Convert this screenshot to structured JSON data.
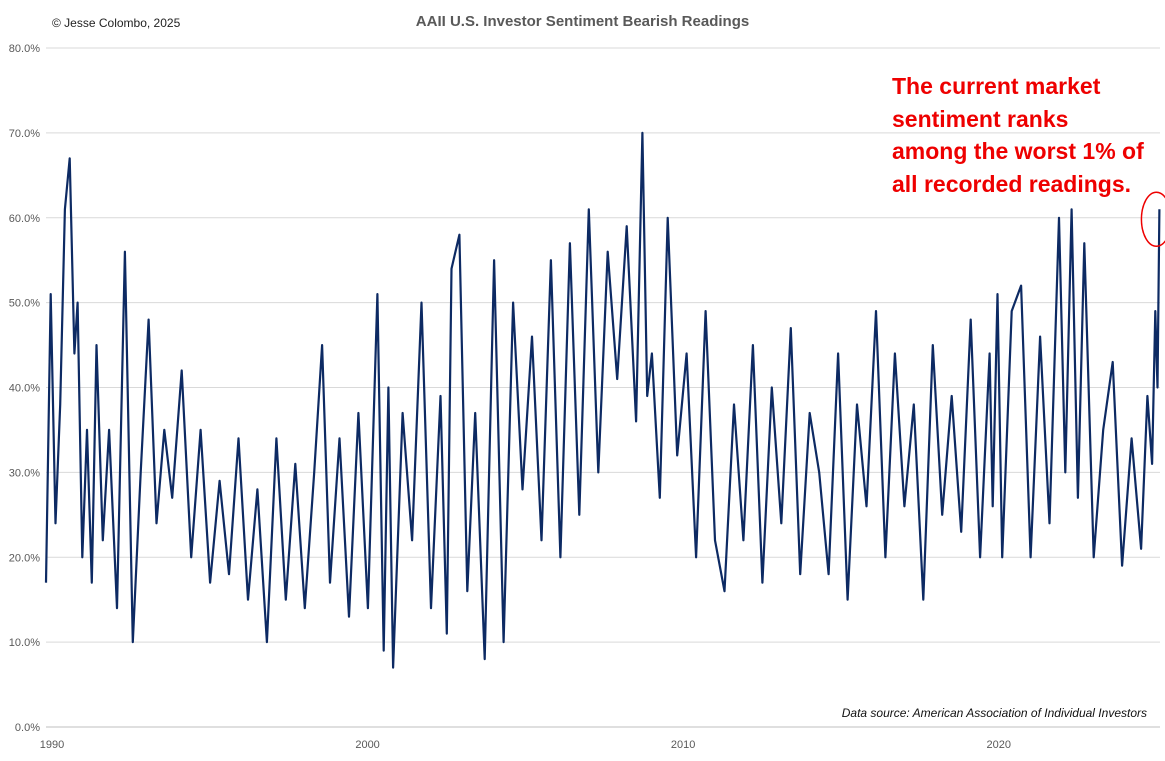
{
  "copyright": "© Jesse Colombo, 2025",
  "title": "AAII U.S. Investor Sentiment Bearish Readings",
  "annotation_lines": [
    "The current market",
    "sentiment ranks",
    "among the worst 1% of",
    "all recorded readings."
  ],
  "source": "Data source: American Association of Individual Investors",
  "colors": {
    "line": "#0d2a63",
    "highlight": "#ee0000",
    "grid": "#d9d9d9"
  },
  "chart_data": {
    "type": "line",
    "title": "AAII U.S. Investor Sentiment Bearish Readings",
    "xlabel": "",
    "ylabel": "",
    "x_ticks": [
      "1990",
      "2000",
      "2010",
      "2020"
    ],
    "y_ticks": [
      "0.0%",
      "10.0%",
      "20.0%",
      "30.0%",
      "40.0%",
      "50.0%",
      "60.0%",
      "70.0%",
      "80.0%"
    ],
    "ylim": [
      0,
      80
    ],
    "x_range": [
      1990,
      2025.3
    ],
    "grid": "horizontal",
    "highlight_circle": {
      "x": 2025.25,
      "y": 61
    },
    "series": [
      {
        "x": [
          1990.0,
          1990.15,
          1990.3,
          1990.45,
          1990.6,
          1990.75,
          1990.9,
          1991.0,
          1991.15,
          1991.3,
          1991.45,
          1991.6,
          1991.8,
          1992.0,
          1992.25,
          1992.5,
          1992.75,
          1993.0,
          1993.25,
          1993.5,
          1993.75,
          1994.0,
          1994.3,
          1994.6,
          1994.9,
          1995.2,
          1995.5,
          1995.8,
          1996.1,
          1996.4,
          1996.7,
          1997.0,
          1997.3,
          1997.6,
          1997.9,
          1998.2,
          1998.5,
          1998.75,
          1999.0,
          1999.3,
          1999.6,
          1999.9,
          2000.2,
          2000.5,
          2000.7,
          2000.85,
          2001.0,
          2001.3,
          2001.6,
          2001.9,
          2002.2,
          2002.5,
          2002.7,
          2002.85,
          2003.1,
          2003.35,
          2003.6,
          2003.9,
          2004.2,
          2004.5,
          2004.8,
          2005.1,
          2005.4,
          2005.7,
          2006.0,
          2006.3,
          2006.6,
          2006.9,
          2007.2,
          2007.5,
          2007.8,
          2008.1,
          2008.4,
          2008.7,
          2008.9,
          2009.05,
          2009.2,
          2009.45,
          2009.7,
          2010.0,
          2010.3,
          2010.6,
          2010.9,
          2011.2,
          2011.5,
          2011.8,
          2012.1,
          2012.4,
          2012.7,
          2013.0,
          2013.3,
          2013.6,
          2013.9,
          2014.2,
          2014.5,
          2014.8,
          2015.1,
          2015.4,
          2015.7,
          2016.0,
          2016.3,
          2016.6,
          2016.9,
          2017.2,
          2017.5,
          2017.8,
          2018.1,
          2018.4,
          2018.7,
          2019.0,
          2019.3,
          2019.6,
          2019.9,
          2020.0,
          2020.15,
          2020.3,
          2020.6,
          2020.9,
          2021.2,
          2021.5,
          2021.8,
          2022.1,
          2022.3,
          2022.5,
          2022.7,
          2022.9,
          2023.2,
          2023.5,
          2023.8,
          2024.1,
          2024.4,
          2024.7,
          2024.9,
          2025.05,
          2025.15,
          2025.22,
          2025.28
        ],
        "values": [
          17,
          51,
          24,
          38,
          61,
          67,
          44,
          50,
          20,
          35,
          17,
          45,
          22,
          35,
          14,
          56,
          10,
          30,
          48,
          24,
          35,
          27,
          42,
          20,
          35,
          17,
          29,
          18,
          34,
          15,
          28,
          10,
          34,
          15,
          31,
          14,
          30,
          45,
          17,
          34,
          13,
          37,
          14,
          51,
          9,
          40,
          7,
          37,
          22,
          50,
          14,
          39,
          11,
          54,
          58,
          16,
          37,
          8,
          55,
          10,
          50,
          28,
          46,
          22,
          55,
          20,
          57,
          25,
          61,
          30,
          56,
          41,
          59,
          36,
          70,
          39,
          44,
          27,
          60,
          32,
          44,
          20,
          49,
          22,
          16,
          38,
          22,
          45,
          17,
          40,
          24,
          47,
          18,
          37,
          30,
          18,
          44,
          15,
          38,
          26,
          49,
          20,
          44,
          26,
          38,
          15,
          45,
          25,
          39,
          23,
          48,
          20,
          44,
          26,
          51,
          20,
          49,
          52,
          20,
          46,
          24,
          60,
          30,
          61,
          27,
          57,
          20,
          35,
          43,
          19,
          34,
          21,
          39,
          31,
          49,
          40,
          61
        ]
      }
    ]
  }
}
